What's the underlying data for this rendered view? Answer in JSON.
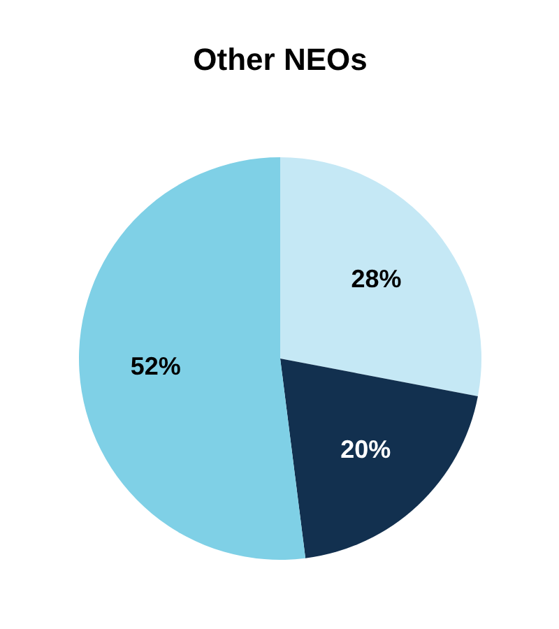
{
  "chart_data": {
    "type": "pie",
    "title": "Other NEOs",
    "categories": [
      null,
      null,
      null
    ],
    "values": [
      28,
      20,
      52
    ],
    "colors": [
      "#c5e8f5",
      "#12304f",
      "#7fd0e6"
    ],
    "value_labels": [
      "28%",
      "20%",
      "52%"
    ]
  }
}
